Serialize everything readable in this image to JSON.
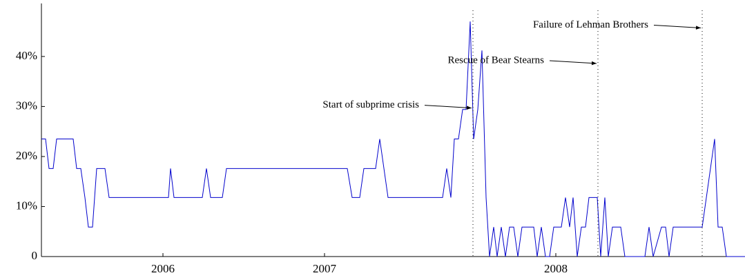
{
  "chart_data": {
    "type": "line",
    "x": [
      0,
      1.2,
      2.2,
      3.4,
      4.4,
      9.2,
      10.2,
      11.4,
      12.6,
      13.6,
      14.8,
      16,
      18.4,
      19.6,
      36.8,
      37.4,
      38.4,
      46.6,
      47.8,
      49,
      52.4,
      53.6,
      88.6,
      90,
      92.2,
      93.4,
      96.8,
      98,
      100.4,
      116.2,
      117.4,
      118.6,
      119.6,
      120.8,
      122,
      123,
      124.2,
      125.2,
      126.4,
      127.6,
      128.8,
      129.8,
      131,
      132,
      133.2,
      134.4,
      135.6,
      136.8,
      138,
      139.2,
      142.6,
      143.6,
      144.8,
      146,
      147.2,
      148.4,
      150.6,
      151.8,
      153,
      154,
      155.2,
      156.4,
      157.6,
      158.6,
      161,
      162,
      163.2,
      164.2,
      165.4,
      167.8,
      169,
      174.8,
      176,
      177.2,
      179.6,
      180.8,
      181.8,
      183,
      191.4,
      195,
      196,
      197.2,
      198.4,
      203.8
    ],
    "series": [
      {
        "color": "#0000cc",
        "values": [
          23.5,
          23.5,
          17.6,
          17.6,
          23.5,
          23.5,
          17.6,
          17.6,
          11.8,
          5.9,
          5.9,
          17.6,
          17.6,
          11.8,
          11.8,
          17.6,
          11.8,
          11.8,
          17.6,
          11.8,
          11.8,
          17.6,
          17.6,
          11.8,
          11.8,
          17.6,
          17.6,
          23.5,
          11.8,
          11.8,
          17.6,
          11.8,
          23.5,
          23.5,
          29.4,
          29.4,
          47,
          23.5,
          29.4,
          41.2,
          11.8,
          0,
          5.9,
          0,
          5.9,
          0,
          5.9,
          5.9,
          0,
          5.9,
          5.9,
          0,
          5.9,
          0,
          0,
          5.9,
          5.9,
          11.8,
          5.9,
          11.8,
          0,
          5.9,
          5.9,
          11.8,
          11.8,
          0,
          11.8,
          0,
          5.9,
          5.9,
          0,
          0,
          5.9,
          0,
          5.9,
          5.9,
          0,
          5.9,
          5.9,
          23.5,
          5.9,
          5.9,
          0,
          0
        ]
      }
    ],
    "xlim": [
      0,
      203.8
    ],
    "ylim": [
      0,
      50.6
    ],
    "xticks": [
      {
        "value": 35.2,
        "label": "2006"
      },
      {
        "value": 82,
        "label": "2007"
      },
      {
        "value": 149,
        "label": "2008"
      }
    ],
    "yticks": [
      0,
      {
        "value": 10,
        "label": "10%"
      },
      {
        "value": 20,
        "label": "20%"
      },
      {
        "value": 30,
        "label": "30%"
      },
      {
        "value": 40,
        "label": "40%"
      }
    ],
    "grid": false,
    "annotations": [
      {
        "text": "Start of subprime crisis",
        "x": 125,
        "y": 29.7
      },
      {
        "text": "Rescue of Bear Stearns",
        "x": 161.2,
        "y": 38.6
      },
      {
        "text": "Failure of Lehman Brothers",
        "x": 191.4,
        "y": 45.7
      }
    ]
  }
}
